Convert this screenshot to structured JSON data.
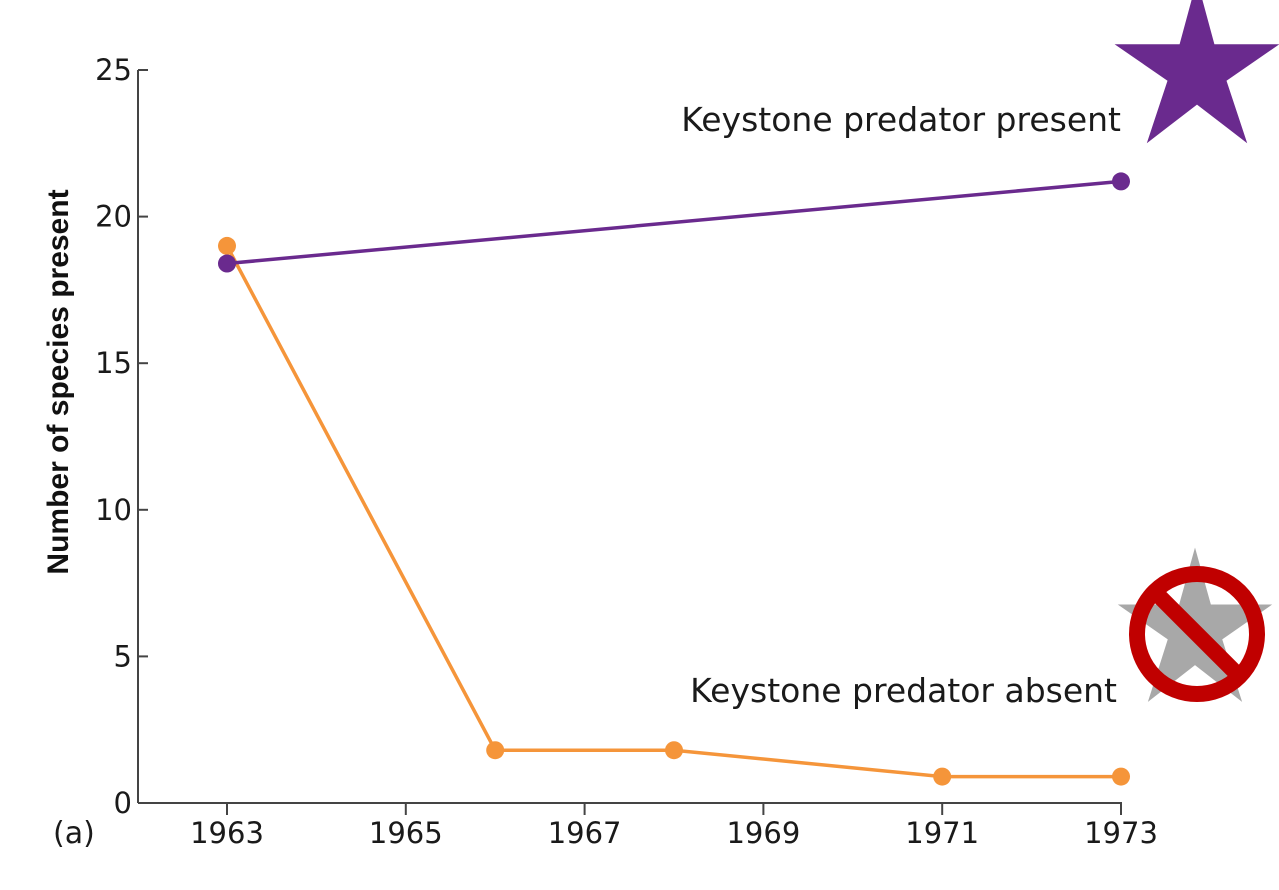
{
  "chart_data": {
    "type": "line",
    "title": "",
    "panel_label": "(a)",
    "xlabel": "",
    "ylabel": "Number of species present",
    "xlim": [
      1962.0,
      1973.0
    ],
    "ylim": [
      0,
      25
    ],
    "x_ticks": [
      1963,
      1965,
      1967,
      1969,
      1971,
      1973
    ],
    "y_ticks": [
      0,
      5,
      10,
      15,
      20,
      25
    ],
    "grid": false,
    "series": [
      {
        "name": "Keystone predator present",
        "color": "#6a2a8e",
        "x": [
          1963,
          1973
        ],
        "values": [
          18.4,
          21.2
        ]
      },
      {
        "name": "Keystone predator absent",
        "color": "#f5953a",
        "x": [
          1963,
          1966,
          1968,
          1971,
          1973
        ],
        "values": [
          19.0,
          1.8,
          1.8,
          0.9,
          0.9
        ]
      }
    ],
    "annotations": [
      {
        "text": "Keystone predator present",
        "series": 0,
        "icon": "purple-star-icon"
      },
      {
        "text": "Keystone predator absent",
        "series": 1,
        "icon": "no-star-icon"
      }
    ],
    "icon_colors": {
      "star_present": "#6a2a8e",
      "star_absent": "#a8a8a8",
      "prohibition": "#c00000"
    }
  }
}
